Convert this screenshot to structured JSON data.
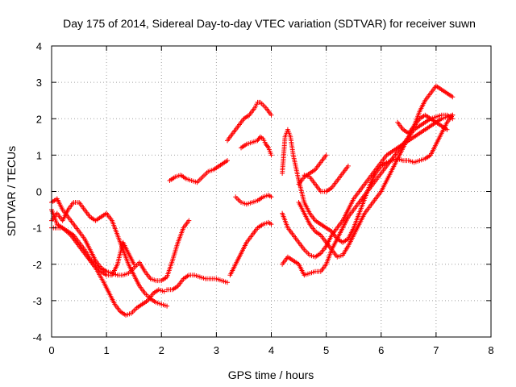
{
  "chart_data": {
    "type": "scatter",
    "title": "Day 175 of 2014, Sidereal Day-to-day VTEC variation (SDTVAR) for receiver suwn",
    "xlabel": "GPS time / hours",
    "ylabel": "SDTVAR / TECUs",
    "xlim": [
      0,
      8
    ],
    "ylim": [
      -4,
      4
    ],
    "xticks": [
      "0",
      "1",
      "2",
      "3",
      "4",
      "5",
      "6",
      "7",
      "8"
    ],
    "yticks": [
      "-4",
      "-3",
      "-2",
      "-1",
      "0",
      "1",
      "2",
      "3",
      "4"
    ],
    "grid": true,
    "marker": "plus",
    "marker_color": "#ff0000",
    "series": [
      {
        "x": [
          0.0,
          0.1,
          0.2,
          0.35,
          0.5,
          0.65,
          0.8,
          0.95,
          1.05,
          1.15,
          1.25,
          1.35,
          1.45,
          1.55,
          1.65,
          1.75,
          1.85,
          1.95,
          2.05
        ],
        "y": [
          -0.5,
          -0.9,
          -1.0,
          -1.2,
          -1.5,
          -1.8,
          -2.1,
          -2.5,
          -2.8,
          -3.1,
          -3.3,
          -3.4,
          -3.35,
          -3.2,
          -3.1,
          -3.0,
          -2.8,
          -2.7,
          -2.75
        ]
      },
      {
        "x": [
          0.0,
          0.1,
          0.2,
          0.3,
          0.4,
          0.5,
          0.6,
          0.7,
          0.8,
          0.9,
          1.0,
          1.1,
          1.2,
          1.3,
          1.4,
          1.5,
          1.6,
          1.7,
          1.8,
          1.9,
          2.0,
          2.1,
          2.2,
          2.3,
          2.4,
          2.5
        ],
        "y": [
          -0.3,
          -0.2,
          -0.5,
          -0.7,
          -0.9,
          -1.1,
          -1.3,
          -1.6,
          -1.9,
          -2.1,
          -2.2,
          -2.25,
          -2.3,
          -2.3,
          -2.25,
          -2.1,
          -1.95,
          -2.2,
          -2.4,
          -2.45,
          -2.45,
          -2.35,
          -1.9,
          -1.4,
          -1.0,
          -0.8
        ]
      },
      {
        "x": [
          0.0,
          0.1,
          0.2,
          0.3,
          0.4,
          0.5,
          0.6,
          0.7,
          0.8,
          0.9,
          1.0,
          1.1,
          1.2,
          1.3,
          1.4,
          1.5,
          1.6,
          1.7,
          1.8,
          1.9,
          2.0,
          2.1
        ],
        "y": [
          -0.8,
          -0.6,
          -0.8,
          -0.5,
          -0.3,
          -0.3,
          -0.5,
          -0.7,
          -0.8,
          -0.7,
          -0.6,
          -0.8,
          -1.2,
          -1.6,
          -2.0,
          -2.3,
          -2.6,
          -2.8,
          -2.95,
          -3.05,
          -3.1,
          -3.15
        ]
      },
      {
        "x": [
          0.0,
          0.1,
          0.2,
          0.3,
          0.4,
          0.5,
          0.6,
          0.7,
          0.8,
          0.9,
          1.0,
          1.1,
          1.2,
          1.3,
          1.4,
          1.5
        ],
        "y": [
          -1.0,
          -1.0,
          -1.0,
          -1.1,
          -1.2,
          -1.4,
          -1.6,
          -1.85,
          -2.0,
          -2.2,
          -2.3,
          -2.3,
          -2.0,
          -1.4,
          -1.7,
          -2.0
        ]
      },
      {
        "x": [
          2.1,
          2.2,
          2.3,
          2.4,
          2.5,
          2.6,
          2.7,
          2.8,
          2.9,
          3.0,
          3.1,
          3.2
        ],
        "y": [
          -2.7,
          -2.7,
          -2.6,
          -2.4,
          -2.3,
          -2.3,
          -2.35,
          -2.4,
          -2.4,
          -2.4,
          -2.45,
          -2.5
        ]
      },
      {
        "x": [
          3.25,
          3.35,
          3.45,
          3.55,
          3.65,
          3.75,
          3.85,
          3.95,
          4.0
        ],
        "y": [
          -2.3,
          -2.0,
          -1.7,
          -1.4,
          -1.2,
          -1.0,
          -0.9,
          -0.85,
          -0.9
        ]
      },
      {
        "x": [
          2.15,
          2.25,
          2.35,
          2.45,
          2.55,
          2.65,
          2.75,
          2.85,
          2.95,
          3.05,
          3.15,
          3.2
        ],
        "y": [
          0.3,
          0.4,
          0.45,
          0.35,
          0.3,
          0.25,
          0.4,
          0.55,
          0.6,
          0.7,
          0.8,
          0.85
        ]
      },
      {
        "x": [
          3.2,
          3.3,
          3.4,
          3.5,
          3.6,
          3.7,
          3.75,
          3.8,
          3.9,
          4.0
        ],
        "y": [
          1.4,
          1.6,
          1.8,
          2.0,
          2.1,
          2.3,
          2.45,
          2.45,
          2.3,
          2.1
        ]
      },
      {
        "x": [
          3.45,
          3.55,
          3.65,
          3.75,
          3.8,
          3.85,
          3.9,
          3.95,
          4.0
        ],
        "y": [
          1.2,
          1.3,
          1.35,
          1.4,
          1.5,
          1.45,
          1.3,
          1.2,
          1.0
        ]
      },
      {
        "x": [
          3.35,
          3.45,
          3.55,
          3.65,
          3.75,
          3.85,
          3.95,
          4.0
        ],
        "y": [
          -0.15,
          -0.3,
          -0.35,
          -0.3,
          -0.25,
          -0.15,
          -0.1,
          -0.15
        ]
      },
      {
        "x": [
          4.2,
          4.25,
          4.3,
          4.35,
          4.4,
          4.5,
          4.6,
          4.7,
          4.8,
          4.9,
          5.0,
          5.1,
          5.2,
          5.3,
          5.4,
          5.5,
          5.6,
          5.7,
          5.8,
          5.9,
          6.0,
          6.1,
          6.2,
          6.3,
          6.4,
          6.5,
          6.6,
          6.7,
          6.8,
          6.9,
          7.0,
          7.1,
          7.2,
          7.3
        ],
        "y": [
          0.5,
          1.5,
          1.7,
          1.5,
          1.0,
          0.3,
          -0.3,
          -0.6,
          -0.8,
          -0.9,
          -1.0,
          -1.1,
          -1.3,
          -1.4,
          -1.3,
          -1.0,
          -0.6,
          -0.2,
          0.2,
          0.5,
          0.7,
          0.8,
          0.85,
          0.9,
          0.85,
          0.85,
          0.8,
          0.85,
          0.9,
          1.0,
          1.3,
          1.6,
          1.9,
          2.1
        ]
      },
      {
        "x": [
          4.2,
          4.3,
          4.4,
          4.5,
          4.6,
          4.7,
          4.8,
          4.9,
          5.0,
          5.1,
          5.2,
          5.3,
          5.4,
          5.5,
          5.6,
          5.7,
          5.8,
          5.9,
          6.0,
          6.1,
          6.2,
          6.3,
          6.4,
          6.5,
          6.6,
          6.7,
          6.8,
          6.9,
          7.0,
          7.1,
          7.2,
          7.3
        ],
        "y": [
          -0.6,
          -1.0,
          -1.2,
          -1.4,
          -1.6,
          -1.75,
          -1.8,
          -1.7,
          -1.5,
          -1.2,
          -1.0,
          -0.8,
          -0.5,
          -0.2,
          0.0,
          0.2,
          0.4,
          0.6,
          0.8,
          1.0,
          1.1,
          1.2,
          1.3,
          1.4,
          1.5,
          1.6,
          1.7,
          1.8,
          1.9,
          2.0,
          2.05,
          2.1
        ]
      },
      {
        "x": [
          4.2,
          4.3,
          4.4,
          4.5,
          4.6,
          4.7,
          4.8,
          4.9,
          5.0,
          5.1,
          5.2,
          5.3,
          5.4,
          5.5,
          5.6,
          5.7,
          5.8,
          5.9,
          6.0,
          6.1,
          6.2,
          6.3,
          6.4,
          6.5,
          6.6,
          6.7,
          6.8,
          6.9,
          7.0,
          7.1,
          7.2,
          7.3
        ],
        "y": [
          -2.0,
          -1.8,
          -1.9,
          -2.0,
          -2.3,
          -2.25,
          -2.2,
          -2.2,
          -2.0,
          -1.6,
          -1.3,
          -1.0,
          -0.7,
          -0.5,
          -0.3,
          -0.1,
          0.1,
          0.3,
          0.5,
          0.7,
          0.9,
          1.1,
          1.3,
          1.5,
          1.7,
          1.8,
          1.9,
          2.0,
          2.05,
          2.1,
          2.1,
          2.0
        ]
      },
      {
        "x": [
          4.5,
          4.6,
          4.7,
          4.8,
          4.9,
          5.0
        ],
        "y": [
          0.2,
          0.4,
          0.5,
          0.6,
          0.8,
          1.0
        ]
      },
      {
        "x": [
          4.5,
          4.6,
          4.7,
          4.8,
          4.9,
          5.0,
          5.1,
          5.2,
          5.3,
          5.4,
          5.5,
          5.6,
          5.7,
          5.8,
          5.9,
          6.0,
          6.1,
          6.2,
          6.3,
          6.4,
          6.5,
          6.6,
          6.7,
          6.8,
          6.9,
          7.0,
          7.1,
          7.2,
          7.3
        ],
        "y": [
          -0.3,
          -0.6,
          -0.9,
          -1.1,
          -1.2,
          -1.4,
          -1.6,
          -1.8,
          -1.75,
          -1.5,
          -1.2,
          -0.9,
          -0.6,
          -0.4,
          -0.2,
          0.0,
          0.3,
          0.6,
          0.9,
          1.2,
          1.5,
          1.8,
          2.2,
          2.5,
          2.7,
          2.9,
          2.8,
          2.7,
          2.6
        ]
      },
      {
        "x": [
          4.6,
          4.7,
          4.8,
          4.9,
          5.0,
          5.1,
          5.2,
          5.3,
          5.4
        ],
        "y": [
          0.45,
          0.4,
          0.2,
          0.0,
          0.0,
          0.1,
          0.3,
          0.5,
          0.7
        ]
      },
      {
        "x": [
          6.3,
          6.4,
          6.5,
          6.6,
          6.7,
          6.8,
          6.9,
          7.0,
          7.1,
          7.2
        ],
        "y": [
          1.9,
          1.7,
          1.6,
          1.8,
          2.0,
          2.1,
          2.0,
          1.9,
          1.8,
          1.7
        ]
      }
    ]
  }
}
